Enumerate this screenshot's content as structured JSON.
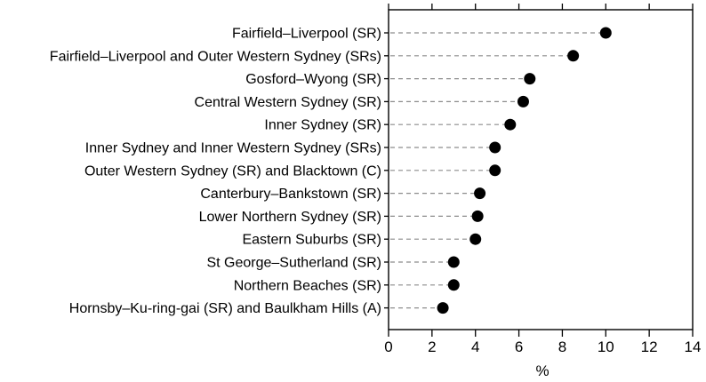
{
  "chart_data": {
    "type": "dot",
    "categories": [
      "Fairfield–Liverpool (SR)",
      "Fairfield–Liverpool and Outer Western Sydney (SRs)",
      "Gosford–Wyong (SR)",
      "Central Western Sydney (SR)",
      "Inner Sydney (SR)",
      "Inner Sydney and Inner Western Sydney (SRs)",
      "Outer Western Sydney (SR) and Blacktown (C)",
      "Canterbury–Bankstown (SR)",
      "Lower Northern Sydney (SR)",
      "Eastern Suburbs (SR)",
      "St George–Sutherland (SR)",
      "Northern Beaches (SR)",
      "Hornsby–Ku-ring-gai (SR) and Baulkham Hills (A)"
    ],
    "values": [
      10.0,
      8.5,
      6.5,
      6.2,
      5.6,
      4.9,
      4.9,
      4.2,
      4.1,
      4.0,
      3.0,
      3.0,
      2.5
    ],
    "xlabel": "%",
    "xlim": [
      0,
      14
    ],
    "xticks": [
      "0",
      "2",
      "4",
      "6",
      "8",
      "10",
      "12",
      "14"
    ],
    "grid": false,
    "orientation": "horizontal"
  }
}
